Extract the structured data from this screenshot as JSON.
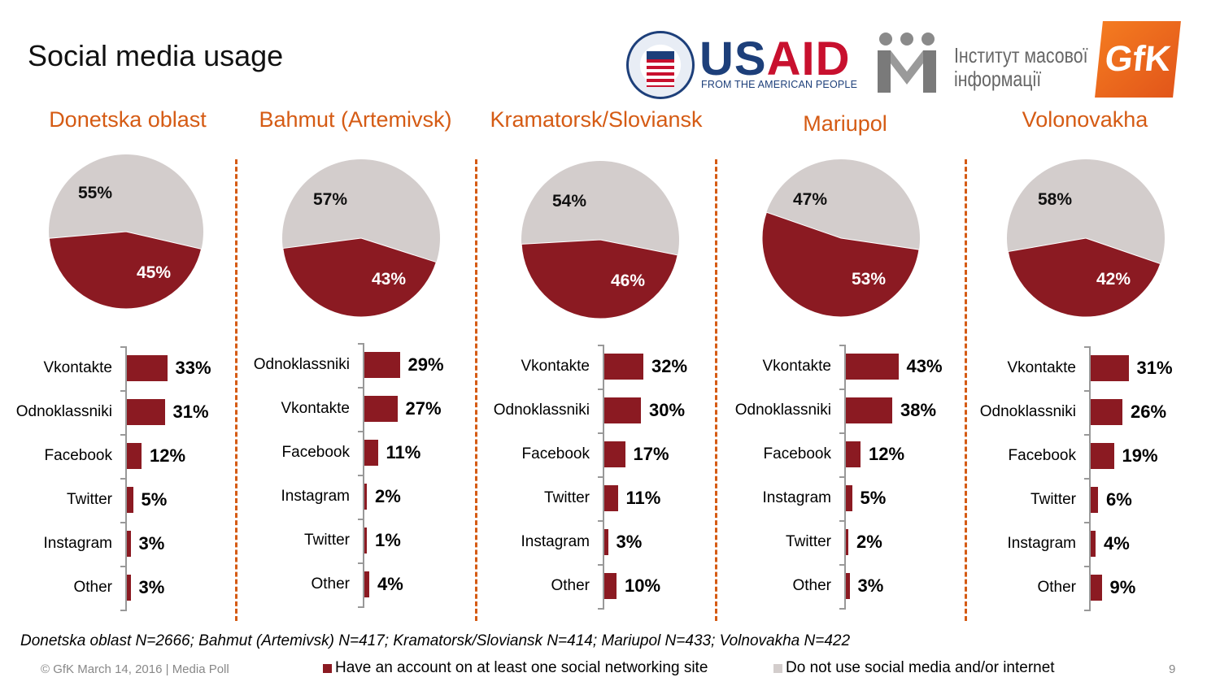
{
  "title": "Social media usage",
  "logos": {
    "usaid_word_us": "US",
    "usaid_word_aid": "AID",
    "usaid_tagline": "FROM THE AMERICAN PEOPLE",
    "imi_line1": "Інститут масової",
    "imi_line2": "інформації",
    "gfk": "GfK"
  },
  "colors": {
    "accent": "#d55b14",
    "has_account": "#8b1a22",
    "no_social": "#d3cdcc"
  },
  "legend": {
    "has_account": "Have an account on at least one social networking site",
    "no_social": "Do not use social media and/or internet"
  },
  "footer": {
    "note": "Donetska oblast N=2666; Bahmut (Artemivsk) N=417; Kramatorsk/Sloviansk N=414; Mariupol N=433; Volnovakha N=422",
    "copyright": "© GfK March 14, 2016 | Media Poll",
    "page": "9"
  },
  "chart_data": [
    {
      "region": "Donetska oblast",
      "pie": {
        "type": "pie",
        "has_account": 45,
        "no_social": 55
      },
      "bars": {
        "type": "bar",
        "categories": [
          "Vkontakte",
          "Odnoklassniki",
          "Facebook",
          "Twitter",
          "Instagram",
          "Other"
        ],
        "values": [
          33,
          31,
          12,
          5,
          3,
          3
        ]
      }
    },
    {
      "region": "Bahmut (Artemivsk)",
      "pie": {
        "type": "pie",
        "has_account": 43,
        "no_social": 57
      },
      "bars": {
        "type": "bar",
        "categories": [
          "Odnoklassniki",
          "Vkontakte",
          "Facebook",
          "Instagram",
          "Twitter",
          "Other"
        ],
        "values": [
          29,
          27,
          11,
          2,
          1,
          4
        ]
      }
    },
    {
      "region": "Kramatorsk/Sloviansk",
      "pie": {
        "type": "pie",
        "has_account": 46,
        "no_social": 54
      },
      "bars": {
        "type": "bar",
        "categories": [
          "Vkontakte",
          "Odnoklassniki",
          "Facebook",
          "Twitter",
          "Instagram",
          "Other"
        ],
        "values": [
          32,
          30,
          17,
          11,
          3,
          10
        ]
      }
    },
    {
      "region": "Mariupol",
      "pie": {
        "type": "pie",
        "has_account": 53,
        "no_social": 47
      },
      "bars": {
        "type": "bar",
        "categories": [
          "Vkontakte",
          "Odnoklassniki",
          "Facebook",
          "Instagram",
          "Twitter",
          "Other"
        ],
        "values": [
          43,
          38,
          12,
          5,
          2,
          3
        ]
      }
    },
    {
      "region": "Volonovakha",
      "pie": {
        "type": "pie",
        "has_account": 42,
        "no_social": 58
      },
      "bars": {
        "type": "bar",
        "categories": [
          "Vkontakte",
          "Odnoklassniki",
          "Facebook",
          "Twitter",
          "Instagram",
          "Other"
        ],
        "values": [
          31,
          26,
          19,
          6,
          4,
          9
        ]
      }
    }
  ]
}
